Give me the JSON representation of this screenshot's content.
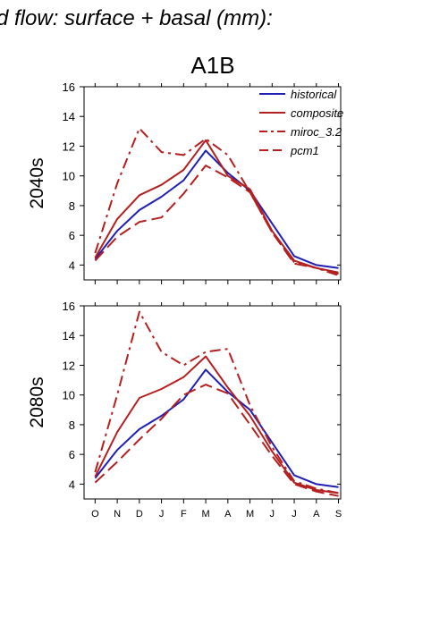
{
  "page_title": "d flow: surface + basal (mm):",
  "scenario_title": "A1B",
  "colors": {
    "historical": "#1f1fb4",
    "model": "#b41f1f",
    "axis": "#000000"
  },
  "chart_data": [
    {
      "type": "line",
      "panel_label": "2040s",
      "x": [
        "O",
        "N",
        "D",
        "J",
        "F",
        "M",
        "A",
        "M",
        "J",
        "J",
        "A",
        "S"
      ],
      "ylim": [
        3,
        16
      ],
      "yticks": [
        4,
        6,
        8,
        10,
        12,
        14,
        16
      ],
      "legend_position": "top-right",
      "series": [
        {
          "name": "historical",
          "style": "solid",
          "color": "#1f1fb4",
          "values": [
            4.4,
            6.3,
            7.7,
            8.6,
            9.7,
            11.7,
            10.2,
            9.0,
            6.8,
            4.6,
            4.0,
            3.8
          ]
        },
        {
          "name": "composite",
          "style": "solid",
          "color": "#b41f1f",
          "values": [
            4.5,
            7.1,
            8.7,
            9.4,
            10.4,
            12.4,
            10.0,
            9.1,
            6.3,
            4.3,
            3.8,
            3.5
          ]
        },
        {
          "name": "miroc_3.2",
          "style": "dashdot",
          "color": "#b41f1f",
          "values": [
            4.8,
            9.5,
            13.2,
            11.6,
            11.4,
            12.5,
            11.4,
            8.9,
            6.2,
            4.2,
            3.8,
            3.3
          ]
        },
        {
          "name": "pcm1",
          "style": "dash",
          "color": "#b41f1f",
          "values": [
            4.3,
            5.9,
            6.9,
            7.2,
            8.8,
            10.7,
            9.9,
            8.9,
            6.2,
            4.1,
            3.8,
            3.4
          ]
        }
      ]
    },
    {
      "type": "line",
      "panel_label": "2080s",
      "x": [
        "O",
        "N",
        "D",
        "J",
        "F",
        "M",
        "A",
        "M",
        "J",
        "J",
        "A",
        "S"
      ],
      "ylim": [
        3,
        16
      ],
      "yticks": [
        4,
        6,
        8,
        10,
        12,
        14,
        16
      ],
      "series": [
        {
          "name": "historical",
          "style": "solid",
          "color": "#1f1fb4",
          "values": [
            4.4,
            6.3,
            7.7,
            8.6,
            9.7,
            11.7,
            10.2,
            9.0,
            6.8,
            4.6,
            4.0,
            3.8
          ]
        },
        {
          "name": "composite",
          "style": "solid",
          "color": "#b41f1f",
          "values": [
            4.5,
            7.5,
            9.8,
            10.4,
            11.2,
            12.6,
            10.5,
            8.6,
            6.2,
            4.1,
            3.6,
            3.4
          ]
        },
        {
          "name": "miroc_3.2",
          "style": "dashdot",
          "color": "#b41f1f",
          "values": [
            4.8,
            10.0,
            15.6,
            12.9,
            12.0,
            12.9,
            13.1,
            9.3,
            6.5,
            4.2,
            3.7,
            3.4
          ]
        },
        {
          "name": "pcm1",
          "style": "dash",
          "color": "#b41f1f",
          "values": [
            4.1,
            5.5,
            7.0,
            8.4,
            10.0,
            10.7,
            10.1,
            8.0,
            5.9,
            4.0,
            3.5,
            3.2
          ]
        }
      ]
    }
  ]
}
